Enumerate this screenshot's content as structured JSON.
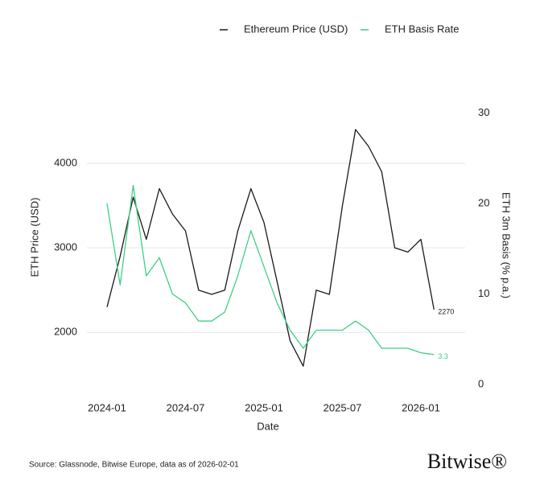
{
  "chart_data": {
    "type": "line",
    "x_label": "Date",
    "y_label": "ETH Price (USD)",
    "y2_label": "ETH 3m Basis (% p.a.)",
    "x": [
      "2024-01",
      "2024-02",
      "2024-03",
      "2024-04",
      "2024-05",
      "2024-06",
      "2024-07",
      "2024-08",
      "2024-09",
      "2024-10",
      "2024-11",
      "2024-12",
      "2025-01",
      "2025-02",
      "2025-03",
      "2025-04",
      "2025-05",
      "2025-06",
      "2025-07",
      "2025-08",
      "2025-09",
      "2025-10",
      "2025-11",
      "2025-12",
      "2026-01",
      "2026-02"
    ],
    "xticks": [
      "2024-01",
      "2024-07",
      "2025-01",
      "2025-07",
      "2026-01"
    ],
    "ylim": [
      1270,
      4980
    ],
    "yticks": [
      2000,
      3000,
      4000
    ],
    "y2lim": [
      -1.07,
      33.6
    ],
    "y2ticks": [
      0,
      10,
      20,
      30
    ],
    "grid": true,
    "legend": "top",
    "series": [
      {
        "name": "Ethereum Price (USD)",
        "color": "#1a1a1a",
        "values": [
          2300,
          2900,
          3600,
          3100,
          3700,
          3400,
          3200,
          2500,
          2450,
          2500,
          3200,
          3700,
          3300,
          2600,
          1900,
          1600,
          2500,
          2450,
          3500,
          4400,
          4200,
          3900,
          3000,
          2950,
          3100,
          2270
        ]
      },
      {
        "name": "ETH Basis Rate",
        "color": "#3ecf85",
        "axis": "y2",
        "values": [
          20,
          11,
          22,
          12,
          14,
          10,
          9,
          7,
          7,
          8,
          12,
          17,
          13,
          9,
          6,
          4,
          6,
          6,
          6,
          7,
          6,
          4,
          4,
          4,
          3.5,
          3.3
        ]
      }
    ]
  },
  "source": "Source: Glassnode, Bitwise Europe, data as of 2026-02-01",
  "logo": "Bitwise®"
}
